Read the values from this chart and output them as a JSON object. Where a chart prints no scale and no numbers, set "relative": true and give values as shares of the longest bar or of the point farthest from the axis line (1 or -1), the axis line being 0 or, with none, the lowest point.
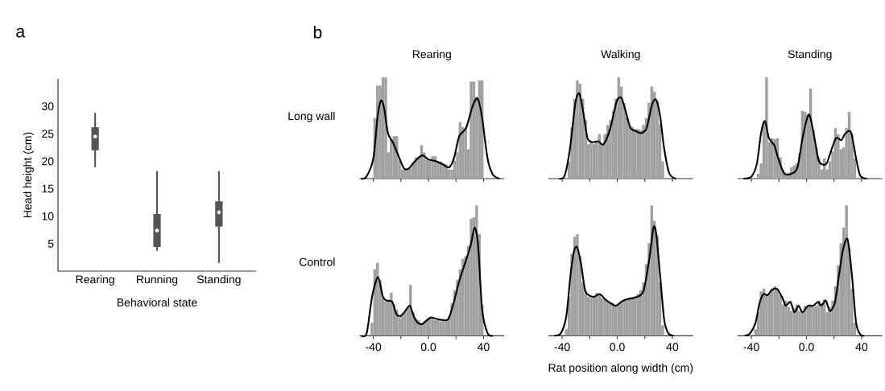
{
  "chart_data": [
    {
      "type": "box",
      "annotations": [
        "a"
      ],
      "xlabel": "Behavioral state",
      "ylabel": "Head height (cm)",
      "categories": [
        "Rearing",
        "Running",
        "Standing"
      ],
      "color": "#555555",
      "ylim": [
        0,
        35
      ],
      "yticks": [
        5,
        10,
        15,
        20,
        25,
        30
      ],
      "boxes": [
        {
          "low": 18.9,
          "q1": 22.0,
          "median": 24.5,
          "q3": 26.2,
          "high": 28.8
        },
        {
          "low": 3.7,
          "q1": 4.4,
          "median": 7.4,
          "q3": 10.4,
          "high": 18.2
        },
        {
          "low": 1.5,
          "q1": 8.1,
          "median": 10.7,
          "q3": 12.7,
          "high": 18.2
        }
      ]
    },
    {
      "type": "histogram",
      "relative": true,
      "title": "Rearing",
      "ylabel": "Long wall",
      "annotations": [
        "b"
      ],
      "tick_labels": false,
      "xlim": [
        -50,
        55
      ],
      "xticks": [
        -40,
        -20,
        0,
        20,
        40
      ],
      "bins": [
        -40,
        -38,
        -36,
        -34,
        -32,
        -30,
        -28,
        -26,
        -24,
        -22,
        -20,
        -18,
        -16,
        -14,
        -12,
        -10,
        -8,
        -6,
        -4,
        -2,
        0,
        2,
        4,
        6,
        8,
        10,
        12,
        14,
        16,
        18,
        20,
        22,
        24,
        26,
        28,
        30,
        32,
        34,
        36,
        38,
        40
      ],
      "series": [
        {
          "type": "histogram",
          "color": "#a0a0a0",
          "values": [
            0.6,
            0.92,
            0.92,
            1.0,
            1.0,
            0.26,
            0.39,
            0.42,
            0.42,
            0.18,
            0.09,
            0.09,
            0.09,
            0.1,
            0.15,
            0.21,
            0.22,
            0.33,
            0.26,
            0.19,
            0.18,
            0.22,
            0.22,
            0.17,
            0.17,
            0.15,
            0.14,
            0.09,
            0.09,
            0.18,
            0.26,
            0.56,
            0.51,
            0.5,
            0.29,
            0.96,
            0.96,
            0.81,
            0.97,
            0.97
          ]
        },
        {
          "type": "line",
          "color": "#000000",
          "x": [
            -49,
            -45,
            -40,
            -37,
            -34.5,
            -32.2,
            -29.4,
            -25.5,
            -21.6,
            -17.7,
            -14.2,
            -9.9,
            -4.5,
            0,
            5.7,
            10.6,
            14.9,
            18.5,
            22.4,
            27.3,
            32.2,
            35.7,
            39,
            42.9,
            46.8,
            51.7
          ],
          "values": [
            0,
            0.02,
            0.2,
            0.6,
            0.77,
            0.7,
            0.45,
            0.35,
            0.22,
            0.1,
            0.1,
            0.17,
            0.23,
            0.19,
            0.17,
            0.14,
            0.11,
            0.2,
            0.42,
            0.5,
            0.72,
            0.79,
            0.6,
            0.2,
            0.04,
            0
          ]
        }
      ]
    },
    {
      "type": "histogram",
      "relative": true,
      "title": "Walking",
      "tick_labels": false,
      "xlim": [
        -50,
        55
      ],
      "xticks": [
        -40,
        -20,
        0,
        20,
        40
      ],
      "bins": [
        -36,
        -34,
        -32,
        -30,
        -28,
        -26,
        -24,
        -22,
        -20,
        -18,
        -16,
        -14,
        -12,
        -10,
        -8,
        -6,
        -4,
        -2,
        0,
        2,
        4,
        6,
        8,
        10,
        12,
        14,
        16,
        18,
        20,
        22,
        24,
        26,
        28,
        30,
        32,
        34
      ],
      "series": [
        {
          "type": "histogram",
          "color": "#a0a0a0",
          "values": [
            0.17,
            0.51,
            0.79,
            0.97,
            0.94,
            0.79,
            0.58,
            0.34,
            0.36,
            0.34,
            0.36,
            0.44,
            0.34,
            0.44,
            0.53,
            0.58,
            0.67,
            0.79,
            1.0,
            0.91,
            0.75,
            0.61,
            0.53,
            0.51,
            0.49,
            0.49,
            0.48,
            0.53,
            0.6,
            0.75,
            0.91,
            0.86,
            0.77,
            0.54,
            0.17
          ]
        },
        {
          "type": "line",
          "color": "#000000",
          "x": [
            -42,
            -38.2,
            -34.3,
            -30.4,
            -27.5,
            -24.6,
            -21.6,
            -17.7,
            -13.8,
            -9.9,
            -5,
            -0.5,
            2.9,
            5.8,
            9.6,
            13.5,
            17.4,
            21.3,
            25.2,
            28.1,
            31.1,
            34,
            37.8,
            42.7
          ],
          "values": [
            0,
            0.03,
            0.3,
            0.75,
            0.84,
            0.65,
            0.4,
            0.36,
            0.37,
            0.34,
            0.5,
            0.76,
            0.8,
            0.68,
            0.5,
            0.47,
            0.45,
            0.5,
            0.73,
            0.78,
            0.62,
            0.3,
            0.05,
            0
          ]
        }
      ]
    },
    {
      "type": "histogram",
      "relative": true,
      "title": "Standing",
      "tick_labels": false,
      "xlim": [
        -50,
        55
      ],
      "xticks": [
        -40,
        -20,
        0,
        20,
        40
      ],
      "bins": [
        -36,
        -34,
        -32,
        -30,
        -28,
        -26,
        -24,
        -22,
        -20,
        -18,
        -16,
        -14,
        -12,
        -10,
        -8,
        -6,
        -4,
        -2,
        0,
        2,
        4,
        6,
        8,
        10,
        12,
        14,
        16,
        18,
        20,
        22,
        24,
        26,
        28,
        30,
        32,
        34,
        36
      ],
      "series": [
        {
          "type": "histogram",
          "color": "#a0a0a0",
          "values": [
            0.05,
            0.15,
            0.56,
            1.0,
            0.36,
            0.4,
            0.39,
            0.4,
            0.21,
            0.09,
            0.05,
            0.06,
            0.11,
            0.13,
            0.15,
            0.25,
            0.67,
            0.66,
            0.63,
            0.89,
            0.48,
            0.31,
            0.21,
            0.09,
            0.2,
            0.09,
            0.17,
            0.27,
            0.5,
            0.44,
            0.29,
            0.31,
            0.5,
            0.66,
            0.45,
            0.2
          ]
        },
        {
          "type": "line",
          "color": "#000000",
          "x": [
            -45.8,
            -40,
            -36,
            -33,
            -30.2,
            -27.3,
            -23.4,
            -20.5,
            -16.6,
            -12.7,
            -6.8,
            -2.9,
            1,
            2.9,
            5.8,
            8.8,
            11.7,
            14.6,
            17.5,
            21.4,
            25.3,
            27.9,
            32.2,
            36,
            39,
            43.9
          ],
          "values": [
            0,
            0.02,
            0.15,
            0.45,
            0.57,
            0.4,
            0.33,
            0.2,
            0.06,
            0.04,
            0.1,
            0.4,
            0.62,
            0.6,
            0.4,
            0.18,
            0.14,
            0.15,
            0.26,
            0.4,
            0.38,
            0.44,
            0.46,
            0.2,
            0.03,
            0
          ]
        }
      ]
    },
    {
      "type": "histogram",
      "relative": true,
      "ylabel": "Control",
      "tick_labels": "x",
      "xlim": [
        -50,
        55
      ],
      "xticks": [
        -40,
        {
          "value": -20,
          "label": null
        },
        {
          "value": 0,
          "label": "0.0"
        },
        {
          "value": 20,
          "label": null
        },
        40
      ],
      "bins": [
        -42,
        -40,
        -38,
        -36,
        -34,
        -32,
        -30,
        -28,
        -26,
        -24,
        -22,
        -20,
        -18,
        -16,
        -14,
        -12,
        -10,
        -8,
        -6,
        -4,
        -2,
        0,
        2,
        4,
        6,
        8,
        10,
        12,
        14,
        16,
        18,
        20,
        22,
        24,
        26,
        28,
        30,
        32,
        34,
        36,
        38,
        40
      ],
      "series": [
        {
          "type": "histogram",
          "color": "#a0a0a0",
          "values": [
            0.1,
            0.51,
            0.56,
            0.43,
            0.29,
            0.27,
            0.26,
            0.33,
            0.24,
            0.2,
            0.14,
            0.15,
            0.18,
            0.22,
            0.39,
            0.18,
            0.13,
            0.12,
            0.09,
            0.1,
            0.12,
            0.14,
            0.13,
            0.12,
            0.12,
            0.11,
            0.12,
            0.12,
            0.15,
            0.25,
            0.35,
            0.43,
            0.51,
            0.59,
            0.61,
            0.69,
            0.9,
            0.91,
            1.0,
            0.78,
            0.24
          ]
        },
        {
          "type": "line",
          "color": "#000000",
          "x": [
            -48.7,
            -44.8,
            -40.9,
            -36.6,
            -33.1,
            -30.2,
            -26.3,
            -23.4,
            -20.5,
            -17.5,
            -13.6,
            -10.7,
            -7.8,
            -4.5,
            -1,
            1.9,
            5.8,
            10.7,
            14.6,
            18.5,
            22.4,
            27.3,
            30.8,
            33.5,
            36,
            39,
            42.9,
            46.8
          ],
          "values": [
            0,
            0.02,
            0.3,
            0.45,
            0.3,
            0.27,
            0.26,
            0.17,
            0.15,
            0.18,
            0.23,
            0.15,
            0.1,
            0.09,
            0.12,
            0.14,
            0.13,
            0.12,
            0.13,
            0.26,
            0.42,
            0.58,
            0.7,
            0.83,
            0.7,
            0.2,
            0.02,
            0
          ]
        }
      ]
    },
    {
      "type": "histogram",
      "relative": true,
      "xlabel": "Rat position along width (cm)",
      "tick_labels": "x",
      "xlim": [
        -50,
        55
      ],
      "xticks": [
        -40,
        {
          "value": -20,
          "label": null
        },
        {
          "value": 0,
          "label": "0.0"
        },
        {
          "value": 20,
          "label": null
        },
        40
      ],
      "bins": [
        -38,
        -36,
        -34,
        -32,
        -30,
        -28,
        -26,
        -24,
        -22,
        -20,
        -18,
        -16,
        -14,
        -12,
        -10,
        -8,
        -6,
        -4,
        -2,
        0,
        2,
        4,
        6,
        8,
        10,
        12,
        14,
        16,
        18,
        20,
        22,
        24,
        26,
        28,
        30,
        32,
        34
      ],
      "series": [
        {
          "type": "histogram",
          "color": "#a0a0a0",
          "values": [
            0.05,
            0.3,
            0.63,
            0.76,
            0.78,
            0.61,
            0.41,
            0.33,
            0.3,
            0.29,
            0.3,
            0.33,
            0.32,
            0.29,
            0.28,
            0.27,
            0.26,
            0.25,
            0.23,
            0.25,
            0.26,
            0.28,
            0.28,
            0.29,
            0.29,
            0.3,
            0.32,
            0.35,
            0.41,
            0.55,
            0.71,
            1.0,
            0.88,
            0.77,
            0.41,
            0.08
          ]
        },
        {
          "type": "line",
          "color": "#000000",
          "x": [
            -45.8,
            -40.9,
            -37,
            -34.1,
            -31.6,
            -29.2,
            -26.3,
            -23.4,
            -20.5,
            -16.6,
            -12.7,
            -8.8,
            -4.9,
            -1,
            2.9,
            6.8,
            11.7,
            16.6,
            19.5,
            23.4,
            26.3,
            28.3,
            31.2,
            34.1,
            37,
            40.9
          ],
          "values": [
            0,
            0.02,
            0.15,
            0.45,
            0.64,
            0.68,
            0.55,
            0.35,
            0.31,
            0.3,
            0.32,
            0.28,
            0.25,
            0.23,
            0.26,
            0.28,
            0.29,
            0.31,
            0.36,
            0.6,
            0.83,
            0.78,
            0.45,
            0.12,
            0.02,
            0
          ]
        }
      ]
    },
    {
      "type": "histogram",
      "relative": true,
      "tick_labels": "x",
      "xlim": [
        -50,
        55
      ],
      "xticks": [
        -40,
        {
          "value": -20,
          "label": null
        },
        {
          "value": 0,
          "label": "0.0"
        },
        {
          "value": 20,
          "label": null
        },
        40
      ],
      "bins": [
        -38,
        -36,
        -34,
        -32,
        -30,
        -28,
        -26,
        -24,
        -22,
        -20,
        -18,
        -16,
        -14,
        -12,
        -10,
        -8,
        -6,
        -4,
        -2,
        0,
        2,
        4,
        6,
        8,
        10,
        12,
        14,
        16,
        18,
        20,
        22,
        24,
        26,
        28,
        30,
        32,
        34,
        36
      ],
      "series": [
        {
          "type": "histogram",
          "color": "#a0a0a0",
          "values": [
            0.05,
            0.18,
            0.34,
            0.36,
            0.32,
            0.32,
            0.36,
            0.38,
            0.36,
            0.31,
            0.24,
            0.27,
            0.22,
            0.19,
            0.21,
            0.24,
            0.19,
            0.18,
            0.23,
            0.23,
            0.24,
            0.22,
            0.23,
            0.27,
            0.25,
            0.28,
            0.18,
            0.22,
            0.27,
            0.38,
            0.54,
            0.71,
            0.83,
            1.0,
            0.68,
            0.36,
            0.1
          ]
        },
        {
          "type": "line",
          "color": "#000000",
          "x": [
            -44.8,
            -40.9,
            -37,
            -34.1,
            -31.2,
            -28.3,
            -25.3,
            -21.4,
            -17.5,
            -15,
            -11.7,
            -8.8,
            -5.8,
            -2.9,
            1,
            4.9,
            8.4,
            10.7,
            14,
            16.9,
            20.5,
            23.4,
            26.3,
            29.8,
            33.1,
            36,
            39,
            41.9
          ],
          "values": [
            0,
            0.02,
            0.1,
            0.25,
            0.32,
            0.31,
            0.35,
            0.36,
            0.29,
            0.23,
            0.26,
            0.18,
            0.23,
            0.18,
            0.23,
            0.23,
            0.26,
            0.23,
            0.27,
            0.19,
            0.25,
            0.45,
            0.65,
            0.74,
            0.45,
            0.1,
            0.01,
            0
          ]
        }
      ]
    }
  ]
}
